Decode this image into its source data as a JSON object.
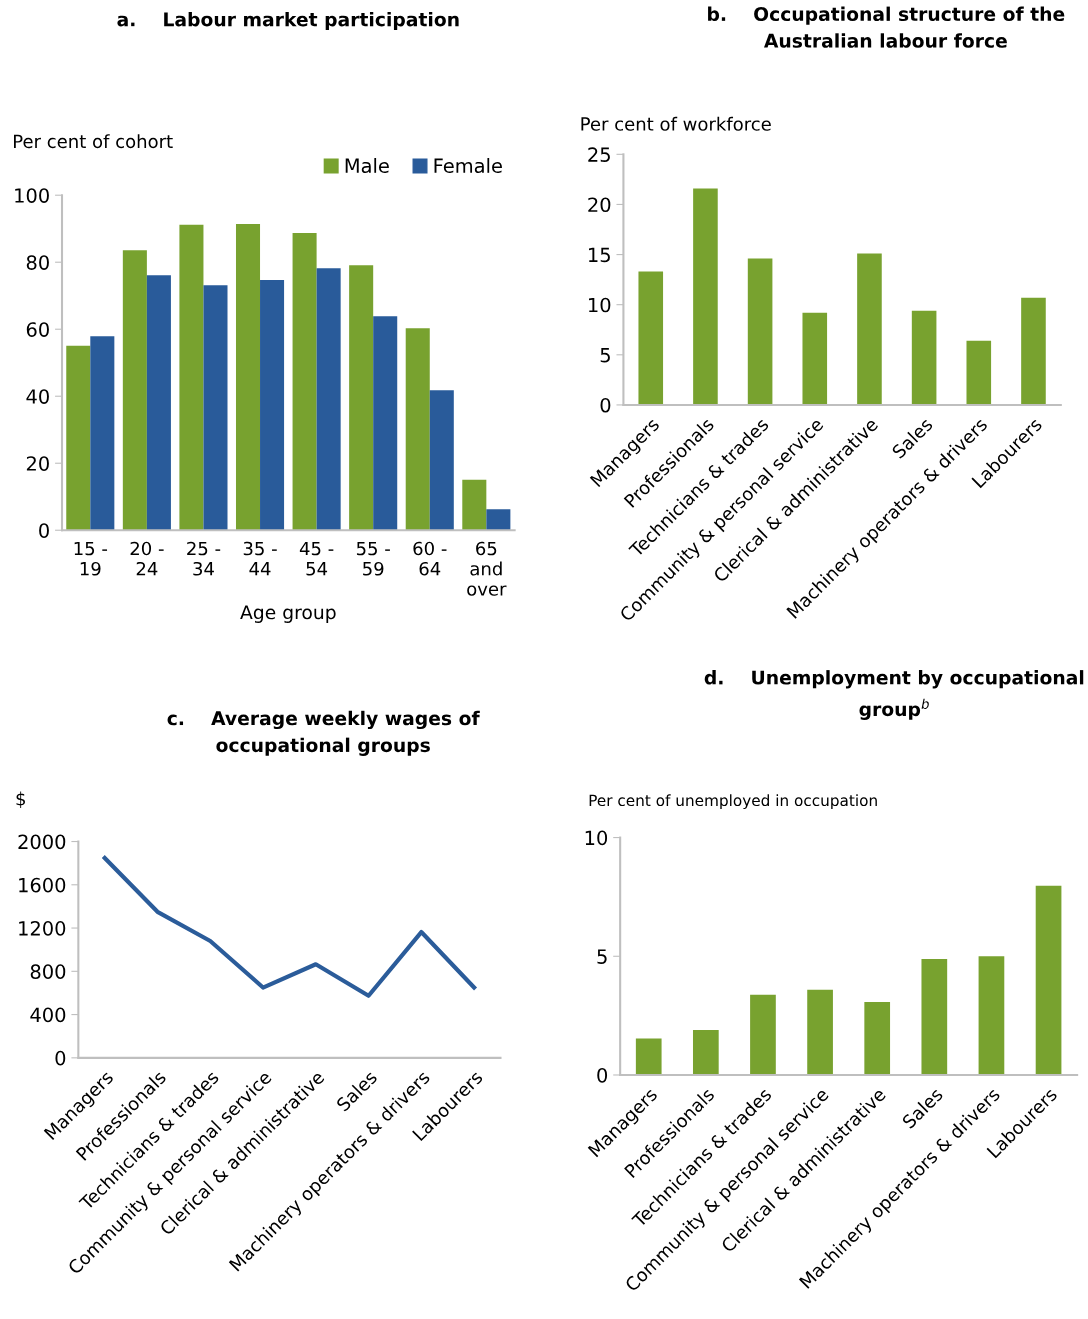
{
  "chart_data": [
    {
      "type": "bar",
      "title": "a.    Labour market participation",
      "ylabel": "Per cent of cohort",
      "xlabel": "Age group",
      "categories": [
        "15 -\n19",
        "20 -\n24",
        "25 -\n34",
        "35 -\n44",
        "45 -\n54",
        "55 -\n59",
        "60 -\n64",
        "65\nand\nover"
      ],
      "series": [
        {
          "name": "Male",
          "color": "#78a22f",
          "values": [
            55.1,
            83.6,
            91.2,
            91.4,
            88.7,
            79.1,
            60.3,
            15.1
          ]
        },
        {
          "name": "Female",
          "color": "#295b9a",
          "values": [
            57.9,
            76.1,
            73.1,
            74.7,
            78.2,
            63.9,
            41.8,
            6.3
          ]
        }
      ],
      "ylim": [
        0,
        100
      ],
      "yticks": [
        0,
        20,
        40,
        60,
        80,
        100
      ],
      "legend": "top right",
      "grid": false
    },
    {
      "type": "bar",
      "title": "b.    Occupational structure of the\nAustralian labour force",
      "ylabel": "Per cent of workforce",
      "categories": [
        "Managers",
        "Professionals",
        "Technicians & trades",
        "Community & personal service",
        "Clerical & administrative",
        "Sales",
        "Machinery operators & drivers",
        "Labourers"
      ],
      "series": [
        {
          "color": "#78a22f",
          "values": [
            13.3,
            21.6,
            14.6,
            9.2,
            15.1,
            9.4,
            6.4,
            10.7
          ]
        }
      ],
      "ylim": [
        0,
        25
      ],
      "yticks": [
        0,
        5,
        10,
        15,
        20,
        25
      ],
      "grid": false
    },
    {
      "type": "line",
      "title": "c.    Average weekly wages of\noccupational groups",
      "ylabel": "$",
      "categories": [
        "Managers",
        "Professionals",
        "Technicians & trades",
        "Community & personal service",
        "Clerical & administrative",
        "Sales",
        "Machinery operators & drivers",
        "Labourers"
      ],
      "series": [
        {
          "color": "#2b5c9a",
          "values": [
            1847,
            1350,
            1080,
            650,
            865,
            574,
            1163,
            650
          ]
        }
      ],
      "ylim": [
        0,
        2000
      ],
      "yticks": [
        0,
        400,
        800,
        1200,
        1600,
        2000
      ],
      "grid": false,
      "marker": "none",
      "line_style": "solid"
    },
    {
      "type": "bar",
      "title": "d.    Unemployment by occupational\ngroup$^{b}$",
      "ylabel": "Per cent of unemployed in occupation",
      "categories": [
        "Managers",
        "Professionals",
        "Technicians & trades",
        "Community & personal service",
        "Clerical & administrative",
        "Sales",
        "Machinery operators & drivers",
        "Labourers"
      ],
      "series": [
        {
          "color": "#78a22f",
          "values": [
            1.54,
            1.9,
            3.38,
            3.59,
            3.07,
            4.89,
            5.0,
            7.97
          ]
        }
      ],
      "ylim": [
        0,
        10
      ],
      "yticks": [
        0,
        5,
        10
      ],
      "grid": false
    }
  ]
}
